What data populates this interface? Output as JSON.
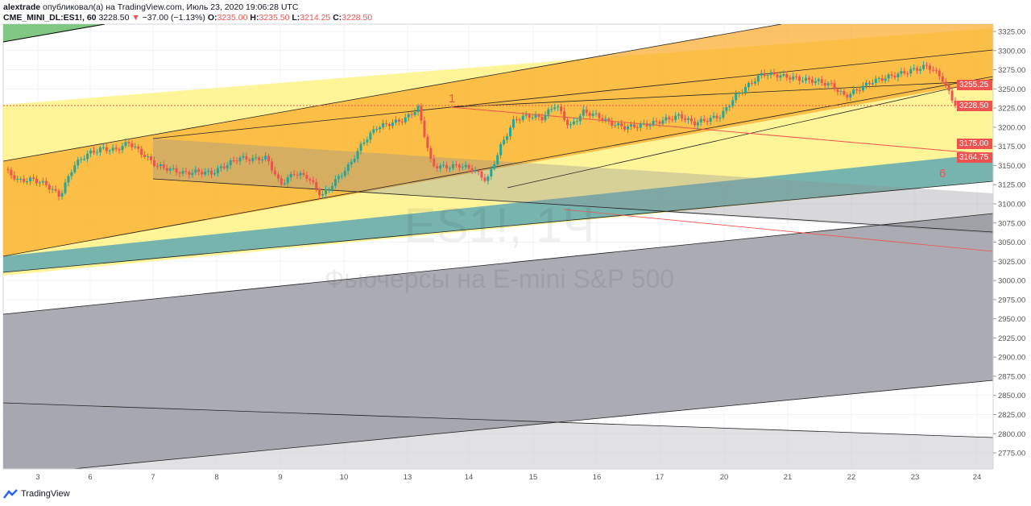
{
  "header": {
    "author": "alextrade",
    "published_text": "опубликовал(а) на TradingView.com, Июль 23, 2020 19:06:28 UTC",
    "symbol": "CME_MINI_DL:ES1!, 60",
    "last": "3228.50",
    "change": "−37.00 (−1.13%)",
    "o_label": "O:",
    "o": "3235.00",
    "h_label": "H:",
    "h": "3235.50",
    "l_label": "L:",
    "l": "3214.25",
    "c_label": "C:",
    "c": "3228.50"
  },
  "watermark": {
    "symbol": "ES1!, 1Ч",
    "name": "Фьючерсы на E-mini S&P 500"
  },
  "annotations": {
    "label_1": "1",
    "label_6": "6"
  },
  "price_labels": [
    "3255.25",
    "3228.50",
    "3175.00",
    "3164.75"
  ],
  "footer": {
    "brand": "TradingView"
  },
  "colors": {
    "up": "#26a69a",
    "down": "#ef5350",
    "accent": "#ef5350"
  },
  "chart_data": {
    "type": "candlestick",
    "title": "CME_MINI_DL:ES1!, 60",
    "ylim": [
      2760,
      3335
    ],
    "yticks": [
      "3325.00",
      "3300.00",
      "3275.00",
      "3250.00",
      "3225.00",
      "3200.00",
      "3175.00",
      "3150.00",
      "3125.00",
      "3100.00",
      "3075.00",
      "3050.00",
      "3025.00",
      "3000.00",
      "2975.00",
      "2950.00",
      "2925.00",
      "2900.00",
      "2875.00",
      "2850.00",
      "2825.00",
      "2800.00",
      "2775.00"
    ],
    "xticks": [
      "3",
      "6",
      "7",
      "8",
      "9",
      "10",
      "13",
      "14",
      "15",
      "16",
      "17",
      "20",
      "21",
      "22",
      "23",
      "24"
    ],
    "closes": [
      3145,
      3130,
      3132,
      3125,
      3110,
      3150,
      3165,
      3172,
      3170,
      3180,
      3165,
      3150,
      3145,
      3140,
      3142,
      3140,
      3150,
      3160,
      3158,
      3160,
      3125,
      3140,
      3135,
      3110,
      3130,
      3150,
      3180,
      3200,
      3205,
      3210,
      3225,
      3150,
      3148,
      3150,
      3145,
      3130,
      3175,
      3210,
      3215,
      3212,
      3230,
      3200,
      3220,
      3215,
      3205,
      3200,
      3202,
      3205,
      3210,
      3215,
      3205,
      3210,
      3215,
      3240,
      3255,
      3270,
      3268,
      3265,
      3262,
      3260,
      3255,
      3240,
      3250,
      3260,
      3265,
      3270,
      3275,
      3280,
      3265,
      3228.5
    ]
  }
}
